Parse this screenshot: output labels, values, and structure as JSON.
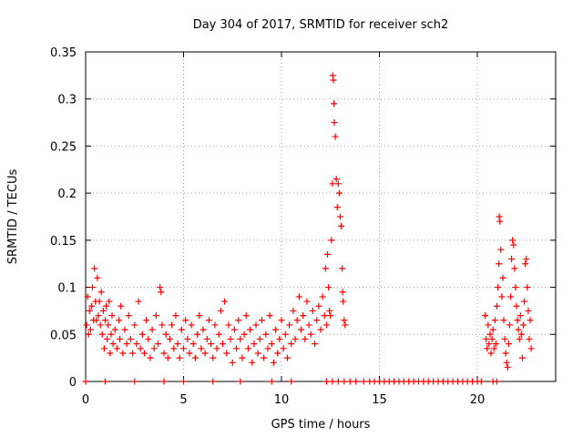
{
  "chart_data": {
    "type": "scatter",
    "title": "Day 304 of 2017, SRMTID for receiver sch2",
    "xlabel": "GPS time / hours",
    "ylabel": "SRMTID / TECUs",
    "xlim": [
      0,
      24
    ],
    "ylim": [
      0,
      0.35
    ],
    "x_ticks": [
      0,
      5,
      10,
      15,
      20
    ],
    "x_tick_labels": [
      "0",
      "5",
      "10",
      "15",
      "20"
    ],
    "y_ticks": [
      0,
      0.05,
      0.1,
      0.15,
      0.2,
      0.25,
      0.3,
      0.35
    ],
    "y_tick_labels": [
      "0",
      "0.05",
      "0.1",
      "0.15",
      "0.2",
      "0.25",
      "0.3",
      "0.35"
    ],
    "grid": true,
    "marker": "+",
    "color": "#ff0000",
    "series": [
      {
        "name": "SRMTID",
        "points": [
          [
            0.05,
            0.06
          ],
          [
            0.1,
            0.09
          ],
          [
            0.15,
            0.05
          ],
          [
            0.2,
            0.075
          ],
          [
            0.25,
            0.055
          ],
          [
            0.3,
            0.08
          ],
          [
            0.35,
            0.1
          ],
          [
            0.4,
            0.065
          ],
          [
            0.45,
            0.12
          ],
          [
            0.5,
            0.085
          ],
          [
            0.55,
            0.065
          ],
          [
            0.6,
            0.11
          ],
          [
            0.65,
            0.07
          ],
          [
            0.7,
            0.085
          ],
          [
            0.75,
            0.06
          ],
          [
            0.8,
            0.095
          ],
          [
            0.85,
            0.05
          ],
          [
            0.9,
            0.075
          ],
          [
            0.95,
            0.035
          ],
          [
            1.0,
            0.065
          ],
          [
            1.05,
            0.08
          ],
          [
            1.1,
            0.045
          ],
          [
            1.15,
            0.06
          ],
          [
            1.2,
            0.085
          ],
          [
            1.25,
            0.03
          ],
          [
            1.3,
            0.05
          ],
          [
            1.35,
            0.07
          ],
          [
            1.4,
            0.04
          ],
          [
            1.5,
            0.055
          ],
          [
            1.6,
            0.035
          ],
          [
            1.7,
            0.065
          ],
          [
            1.75,
            0.045
          ],
          [
            1.8,
            0.08
          ],
          [
            1.9,
            0.03
          ],
          [
            2.0,
            0.055
          ],
          [
            2.1,
            0.04
          ],
          [
            2.2,
            0.07
          ],
          [
            2.3,
            0.045
          ],
          [
            2.4,
            0.03
          ],
          [
            2.5,
            0.06
          ],
          [
            2.6,
            0.04
          ],
          [
            2.7,
            0.085
          ],
          [
            2.8,
            0.035
          ],
          [
            2.9,
            0.05
          ],
          [
            3.0,
            0.03
          ],
          [
            3.1,
            0.065
          ],
          [
            3.2,
            0.045
          ],
          [
            3.3,
            0.025
          ],
          [
            3.4,
            0.055
          ],
          [
            3.5,
            0.035
          ],
          [
            3.6,
            0.07
          ],
          [
            3.7,
            0.04
          ],
          [
            3.8,
            0.1
          ],
          [
            3.85,
            0.095
          ],
          [
            3.9,
            0.06
          ],
          [
            4.0,
            0.03
          ],
          [
            4.1,
            0.05
          ],
          [
            4.2,
            0.025
          ],
          [
            4.3,
            0.045
          ],
          [
            4.4,
            0.06
          ],
          [
            4.5,
            0.035
          ],
          [
            4.6,
            0.07
          ],
          [
            4.7,
            0.04
          ],
          [
            4.8,
            0.025
          ],
          [
            4.9,
            0.055
          ],
          [
            5.0,
            0.035
          ],
          [
            5.1,
            0.065
          ],
          [
            5.2,
            0.045
          ],
          [
            5.3,
            0.03
          ],
          [
            5.4,
            0.06
          ],
          [
            5.5,
            0.04
          ],
          [
            5.6,
            0.025
          ],
          [
            5.7,
            0.05
          ],
          [
            5.8,
            0.07
          ],
          [
            5.9,
            0.035
          ],
          [
            6.0,
            0.055
          ],
          [
            6.1,
            0.03
          ],
          [
            6.2,
            0.045
          ],
          [
            6.3,
            0.065
          ],
          [
            6.4,
            0.04
          ],
          [
            6.5,
            0.025
          ],
          [
            6.6,
            0.06
          ],
          [
            6.7,
            0.035
          ],
          [
            6.8,
            0.05
          ],
          [
            6.9,
            0.075
          ],
          [
            7.0,
            0.04
          ],
          [
            7.1,
            0.085
          ],
          [
            7.2,
            0.03
          ],
          [
            7.3,
            0.06
          ],
          [
            7.4,
            0.045
          ],
          [
            7.5,
            0.02
          ],
          [
            7.6,
            0.055
          ],
          [
            7.7,
            0.035
          ],
          [
            7.8,
            0.065
          ],
          [
            7.9,
            0.045
          ],
          [
            8.0,
            0.025
          ],
          [
            8.1,
            0.05
          ],
          [
            8.2,
            0.07
          ],
          [
            8.3,
            0.035
          ],
          [
            8.4,
            0.055
          ],
          [
            8.5,
            0.02
          ],
          [
            8.6,
            0.04
          ],
          [
            8.7,
            0.06
          ],
          [
            8.8,
            0.03
          ],
          [
            8.9,
            0.045
          ],
          [
            9.0,
            0.065
          ],
          [
            9.1,
            0.025
          ],
          [
            9.2,
            0.05
          ],
          [
            9.3,
            0.035
          ],
          [
            9.4,
            0.07
          ],
          [
            9.5,
            0.04
          ],
          [
            9.6,
            0.02
          ],
          [
            9.7,
            0.055
          ],
          [
            9.8,
            0.03
          ],
          [
            9.9,
            0.045
          ],
          [
            10.0,
            0.065
          ],
          [
            10.1,
            0.035
          ],
          [
            10.2,
            0.05
          ],
          [
            10.3,
            0.025
          ],
          [
            10.4,
            0.06
          ],
          [
            10.5,
            0.04
          ],
          [
            10.6,
            0.075
          ],
          [
            10.7,
            0.045
          ],
          [
            10.8,
            0.065
          ],
          [
            10.9,
            0.09
          ],
          [
            11.0,
            0.055
          ],
          [
            11.1,
            0.07
          ],
          [
            11.2,
            0.045
          ],
          [
            11.3,
            0.085
          ],
          [
            11.4,
            0.06
          ],
          [
            11.5,
            0.05
          ],
          [
            11.6,
            0.075
          ],
          [
            11.7,
            0.04
          ],
          [
            11.8,
            0.065
          ],
          [
            11.9,
            0.08
          ],
          [
            12.0,
            0.055
          ],
          [
            12.1,
            0.09
          ],
          [
            12.2,
            0.07
          ],
          [
            12.25,
            0.12
          ],
          [
            12.3,
            0.06
          ],
          [
            12.35,
            0.135
          ],
          [
            12.4,
            0.1
          ],
          [
            12.45,
            0.075
          ],
          [
            12.5,
            0.07
          ],
          [
            12.55,
            0.15
          ],
          [
            12.6,
            0.21
          ],
          [
            12.62,
            0.325
          ],
          [
            12.65,
            0.32
          ],
          [
            12.68,
            0.295
          ],
          [
            12.7,
            0.275
          ],
          [
            12.75,
            0.26
          ],
          [
            12.8,
            0.215
          ],
          [
            12.85,
            0.185
          ],
          [
            12.9,
            0.21
          ],
          [
            12.95,
            0.2
          ],
          [
            13.0,
            0.175
          ],
          [
            13.05,
            0.165
          ],
          [
            13.1,
            0.12
          ],
          [
            13.12,
            0.095
          ],
          [
            13.15,
            0.085
          ],
          [
            13.2,
            0.065
          ],
          [
            13.25,
            0.06
          ],
          [
            0.0,
            0.0
          ],
          [
            1.0,
            0.0
          ],
          [
            2.5,
            0.0
          ],
          [
            4.0,
            0.0
          ],
          [
            5.0,
            0.0
          ],
          [
            6.5,
            0.0
          ],
          [
            7.9,
            0.0
          ],
          [
            9.5,
            0.0
          ],
          [
            10.5,
            0.0
          ],
          [
            12.3,
            0.0
          ],
          [
            12.6,
            0.0
          ],
          [
            12.9,
            0.0
          ],
          [
            13.2,
            0.0
          ],
          [
            13.5,
            0.0
          ],
          [
            13.8,
            0.0
          ],
          [
            14.2,
            0.0
          ],
          [
            14.5,
            0.0
          ],
          [
            14.75,
            0.0
          ],
          [
            15.0,
            0.0
          ],
          [
            15.25,
            0.0
          ],
          [
            15.5,
            0.0
          ],
          [
            15.75,
            0.0
          ],
          [
            16.0,
            0.0
          ],
          [
            16.25,
            0.0
          ],
          [
            16.5,
            0.0
          ],
          [
            16.75,
            0.0
          ],
          [
            17.0,
            0.0
          ],
          [
            17.25,
            0.0
          ],
          [
            17.5,
            0.0
          ],
          [
            17.75,
            0.0
          ],
          [
            18.0,
            0.0
          ],
          [
            18.25,
            0.0
          ],
          [
            18.5,
            0.0
          ],
          [
            18.75,
            0.0
          ],
          [
            19.0,
            0.0
          ],
          [
            19.25,
            0.0
          ],
          [
            19.5,
            0.0
          ],
          [
            19.75,
            0.0
          ],
          [
            20.0,
            0.0
          ],
          [
            20.2,
            0.0
          ],
          [
            20.8,
            0.0
          ],
          [
            21.0,
            0.0
          ],
          [
            20.4,
            0.07
          ],
          [
            20.45,
            0.045
          ],
          [
            20.5,
            0.035
          ],
          [
            20.55,
            0.06
          ],
          [
            20.6,
            0.04
          ],
          [
            20.65,
            0.05
          ],
          [
            20.7,
            0.03
          ],
          [
            20.75,
            0.045
          ],
          [
            20.8,
            0.055
          ],
          [
            20.85,
            0.035
          ],
          [
            20.9,
            0.065
          ],
          [
            20.95,
            0.04
          ],
          [
            21.0,
            0.08
          ],
          [
            21.05,
            0.1
          ],
          [
            21.1,
            0.125
          ],
          [
            21.12,
            0.175
          ],
          [
            21.15,
            0.17
          ],
          [
            21.2,
            0.14
          ],
          [
            21.25,
            0.09
          ],
          [
            21.3,
            0.11
          ],
          [
            21.35,
            0.065
          ],
          [
            21.4,
            0.045
          ],
          [
            21.45,
            0.03
          ],
          [
            21.5,
            0.02
          ],
          [
            21.55,
            0.015
          ],
          [
            21.6,
            0.04
          ],
          [
            21.65,
            0.06
          ],
          [
            21.7,
            0.09
          ],
          [
            21.75,
            0.13
          ],
          [
            21.8,
            0.15
          ],
          [
            21.85,
            0.145
          ],
          [
            21.9,
            0.12
          ],
          [
            21.95,
            0.1
          ],
          [
            22.0,
            0.08
          ],
          [
            22.05,
            0.065
          ],
          [
            22.1,
            0.055
          ],
          [
            22.15,
            0.045
          ],
          [
            22.2,
            0.07
          ],
          [
            22.25,
            0.05
          ],
          [
            22.3,
            0.025
          ],
          [
            22.35,
            0.06
          ],
          [
            22.4,
            0.085
          ],
          [
            22.45,
            0.125
          ],
          [
            22.5,
            0.13
          ],
          [
            22.55,
            0.1
          ],
          [
            22.6,
            0.075
          ],
          [
            22.65,
            0.045
          ],
          [
            22.7,
            0.065
          ],
          [
            22.75,
            0.035
          ]
        ]
      }
    ]
  }
}
